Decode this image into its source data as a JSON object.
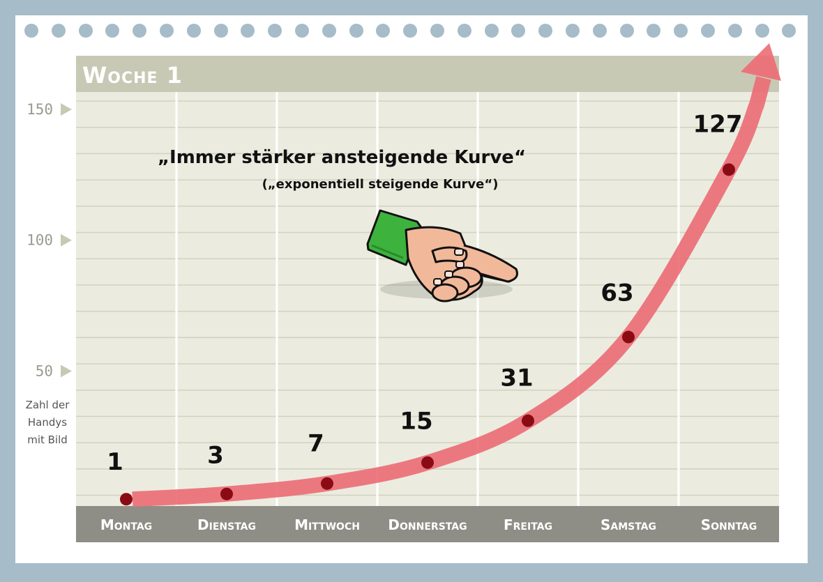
{
  "chart_data": {
    "type": "line",
    "title": "Woche 1",
    "categories": [
      "Montag",
      "Dienstag",
      "Mittwoch",
      "Donnerstag",
      "Freitag",
      "Samstag",
      "Sonntag"
    ],
    "values": [
      1,
      3,
      7,
      15,
      31,
      63,
      127
    ],
    "data_labels": [
      "1",
      "3",
      "7",
      "15",
      "31",
      "63",
      "127"
    ],
    "ylabel": "Zahl der Handys mit Bild",
    "ylabel_lines": [
      "Zahl der",
      "Handys",
      "mit Bild"
    ],
    "yticks": [
      50,
      100,
      150
    ],
    "ytick_labels": [
      "50",
      "100",
      "150"
    ],
    "ylim": [
      0,
      160
    ],
    "grid": true,
    "annotation_main": "„Immer stärker ansteigende  Kurve“",
    "annotation_sub": "(„exponentiell steigende Kurve“)",
    "colors": {
      "curve": "#ec6b74",
      "points": "#8b0b14",
      "plot_background": "#ebecdf",
      "header_band": "#c8c9b4",
      "day_band": "#8e8e86",
      "frame": "#a6bcc8"
    },
    "decorations": [
      "pointing-hand-icon"
    ]
  }
}
